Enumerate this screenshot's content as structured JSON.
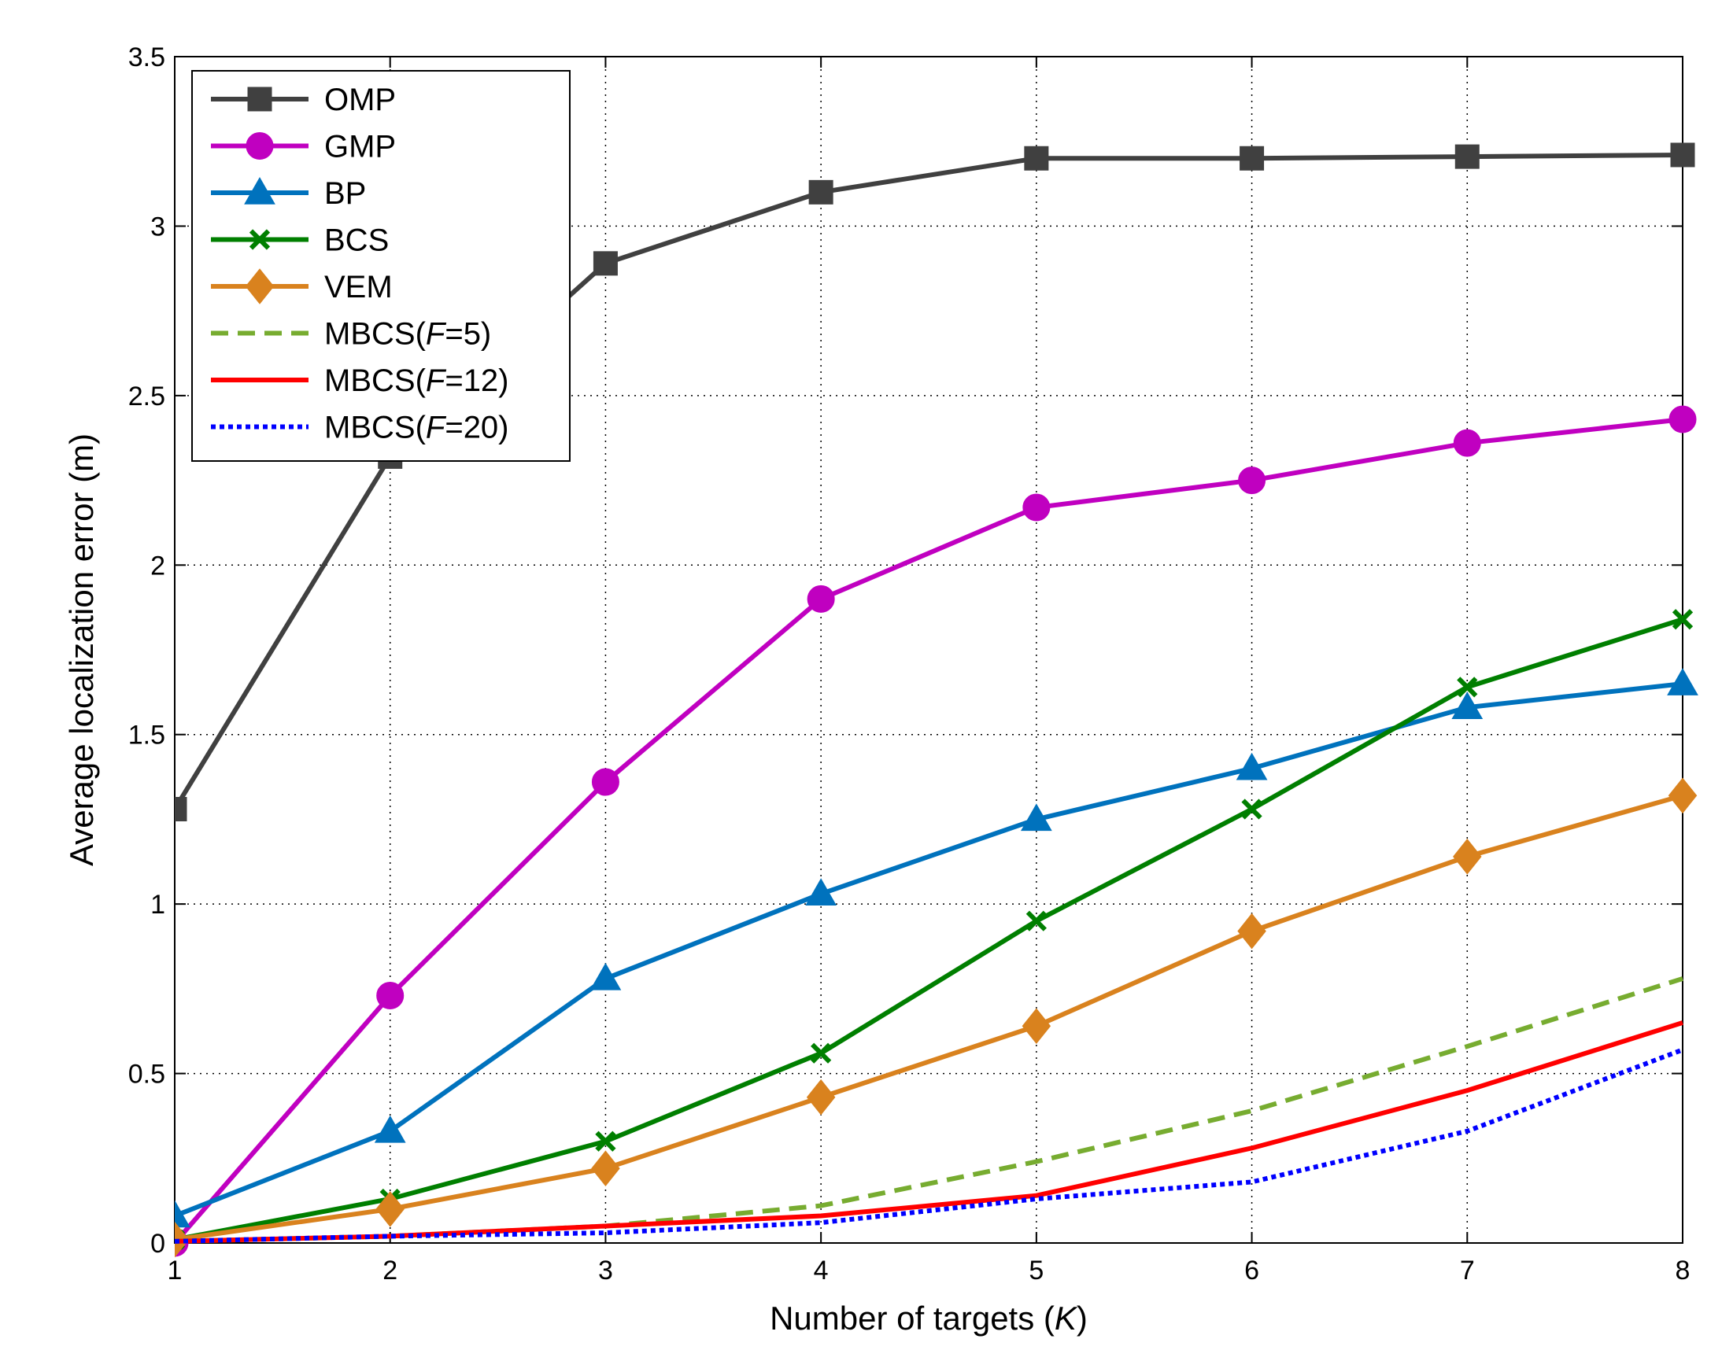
{
  "chart_data": {
    "type": "line",
    "xlabel": "Number of targets (",
    "xlabel_var": "K",
    "xlabel_end": ")",
    "ylabel": "Average localization error (m)",
    "xlim": [
      1,
      8
    ],
    "ylim": [
      0,
      3.5
    ],
    "xticks": [
      "1",
      "2",
      "3",
      "4",
      "5",
      "6",
      "7",
      "8"
    ],
    "yticks": [
      "0",
      "0.5",
      "1",
      "1.5",
      "2",
      "2.5",
      "3",
      "3.5"
    ],
    "grid": true,
    "legend_position": "top-left",
    "x": [
      1,
      2,
      3,
      4,
      5,
      6,
      7,
      8
    ],
    "series": [
      {
        "name": "OMP",
        "color": "#404040",
        "marker": "square",
        "dash": "solid",
        "values": [
          1.28,
          2.32,
          2.89,
          3.1,
          3.2,
          3.2,
          3.205,
          3.21
        ]
      },
      {
        "name": "GMP",
        "color": "#c000c0",
        "marker": "circle",
        "dash": "solid",
        "values": [
          0.0,
          0.73,
          1.36,
          1.9,
          2.17,
          2.25,
          2.36,
          2.43
        ]
      },
      {
        "name": "BP",
        "color": "#0072bd",
        "marker": "triangle",
        "dash": "solid",
        "values": [
          0.08,
          0.33,
          0.78,
          1.03,
          1.25,
          1.4,
          1.58,
          1.65
        ]
      },
      {
        "name": "BCS",
        "color": "#007f00",
        "marker": "x",
        "dash": "solid",
        "values": [
          0.01,
          0.13,
          0.3,
          0.56,
          0.95,
          1.28,
          1.64,
          1.84
        ]
      },
      {
        "name": "VEM",
        "color": "#d9821e",
        "marker": "diamond",
        "dash": "solid",
        "values": [
          0.01,
          0.1,
          0.22,
          0.43,
          0.64,
          0.92,
          1.14,
          1.32
        ]
      },
      {
        "name": "MBCS(",
        "name_var": "F",
        "name_end": "=5)",
        "color": "#77ac30",
        "marker": "none",
        "dash": "dashed",
        "values": [
          0.005,
          0.02,
          0.05,
          0.11,
          0.24,
          0.39,
          0.58,
          0.78
        ]
      },
      {
        "name": "MBCS(",
        "name_var": "F",
        "name_end": "=12)",
        "color": "#ff0000",
        "marker": "none",
        "dash": "solid",
        "values": [
          0.005,
          0.02,
          0.05,
          0.08,
          0.14,
          0.28,
          0.45,
          0.65
        ]
      },
      {
        "name": "MBCS(",
        "name_var": "F",
        "name_end": "=20)",
        "color": "#0000ff",
        "marker": "none",
        "dash": "dotted",
        "values": [
          0.005,
          0.02,
          0.03,
          0.06,
          0.13,
          0.18,
          0.33,
          0.57
        ]
      }
    ]
  }
}
